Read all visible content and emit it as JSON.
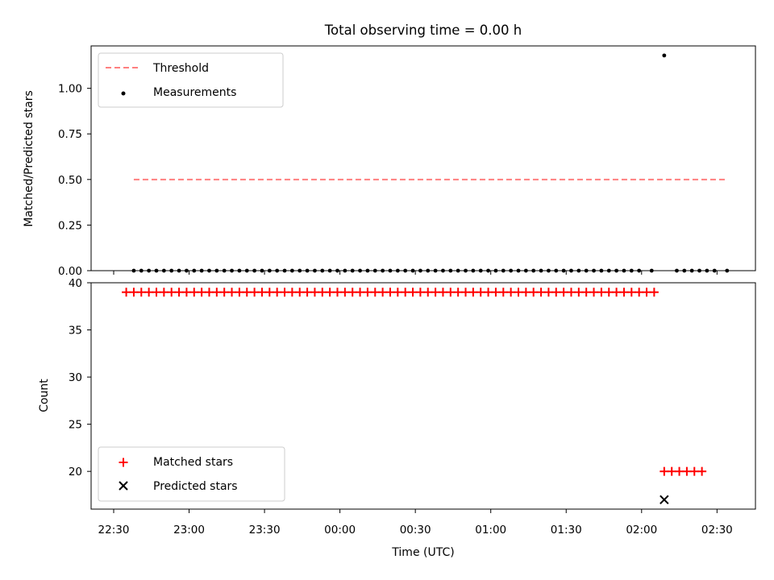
{
  "chart_data": [
    {
      "type": "scatter",
      "title": "Total observing time = 0.00 h",
      "ylabel": "Matched/Predicted stars",
      "ylim": [
        0,
        1.2325
      ],
      "yticks": [
        "0.00",
        "0.25",
        "0.50",
        "0.75",
        "1.00"
      ],
      "ytick_values": [
        0,
        0.25,
        0.5,
        0.75,
        1.0
      ],
      "grid": false,
      "legend_position": "top-left",
      "legend": [
        "Threshold",
        "Measurements"
      ],
      "threshold": {
        "name": "Threshold",
        "value": 0.5,
        "x_start": "22:38",
        "x_end": "02:34",
        "color": "#ff7f7f",
        "style": "dashed"
      },
      "measurements": {
        "name": "Measurements",
        "color": "#000000",
        "x": [
          "22:38",
          "22:41",
          "22:44",
          "22:47",
          "22:50",
          "22:53",
          "22:56",
          "22:59",
          "23:02",
          "23:05",
          "23:08",
          "23:11",
          "23:14",
          "23:17",
          "23:20",
          "23:23",
          "23:26",
          "23:29",
          "23:32",
          "23:35",
          "23:38",
          "23:41",
          "23:44",
          "23:47",
          "23:50",
          "23:53",
          "23:56",
          "23:59",
          "00:02",
          "00:05",
          "00:08",
          "00:11",
          "00:14",
          "00:17",
          "00:20",
          "00:23",
          "00:26",
          "00:29",
          "00:32",
          "00:35",
          "00:38",
          "00:41",
          "00:44",
          "00:47",
          "00:50",
          "00:53",
          "00:56",
          "00:59",
          "01:02",
          "01:05",
          "01:08",
          "01:11",
          "01:14",
          "01:17",
          "01:20",
          "01:23",
          "01:26",
          "01:29",
          "01:32",
          "01:35",
          "01:38",
          "01:41",
          "01:44",
          "01:47",
          "01:50",
          "01:53",
          "01:56",
          "01:59",
          "02:04",
          "02:09",
          "02:14",
          "02:17",
          "02:20",
          "02:23",
          "02:26",
          "02:29",
          "02:34"
        ],
        "y": [
          0,
          0,
          0,
          0,
          0,
          0,
          0,
          0,
          0,
          0,
          0,
          0,
          0,
          0,
          0,
          0,
          0,
          0,
          0,
          0,
          0,
          0,
          0,
          0,
          0,
          0,
          0,
          0,
          0,
          0,
          0,
          0,
          0,
          0,
          0,
          0,
          0,
          0,
          0,
          0,
          0,
          0,
          0,
          0,
          0,
          0,
          0,
          0,
          0,
          0,
          0,
          0,
          0,
          0,
          0,
          0,
          0,
          0,
          0,
          0,
          0,
          0,
          0,
          0,
          0,
          0,
          0,
          0,
          0,
          1.18,
          0,
          0,
          0,
          0,
          0,
          0,
          0
        ]
      }
    },
    {
      "type": "scatter",
      "xlabel": "Time (UTC)",
      "ylabel": "Count",
      "ylim": [
        16,
        40
      ],
      "yticks": [
        "20",
        "25",
        "30",
        "35",
        "40"
      ],
      "ytick_values": [
        20,
        25,
        30,
        35,
        40
      ],
      "xticks": [
        "22:30",
        "23:00",
        "23:30",
        "00:00",
        "00:30",
        "01:00",
        "01:30",
        "02:00",
        "02:30"
      ],
      "grid": false,
      "legend_position": "bottom-left",
      "legend": [
        "Matched stars",
        "Predicted stars"
      ],
      "series": [
        {
          "name": "Matched stars",
          "marker": "plus",
          "color": "#ff0000",
          "x": [
            "22:35",
            "22:38",
            "22:41",
            "22:44",
            "22:47",
            "22:50",
            "22:53",
            "22:56",
            "22:59",
            "23:02",
            "23:05",
            "23:08",
            "23:11",
            "23:14",
            "23:17",
            "23:20",
            "23:23",
            "23:26",
            "23:29",
            "23:32",
            "23:35",
            "23:38",
            "23:41",
            "23:44",
            "23:47",
            "23:50",
            "23:53",
            "23:56",
            "23:59",
            "00:02",
            "00:05",
            "00:08",
            "00:11",
            "00:14",
            "00:17",
            "00:20",
            "00:23",
            "00:26",
            "00:29",
            "00:32",
            "00:35",
            "00:38",
            "00:41",
            "00:44",
            "00:47",
            "00:50",
            "00:53",
            "00:56",
            "00:59",
            "01:02",
            "01:05",
            "01:08",
            "01:11",
            "01:14",
            "01:17",
            "01:20",
            "01:23",
            "01:26",
            "01:29",
            "01:32",
            "01:35",
            "01:38",
            "01:41",
            "01:44",
            "01:47",
            "01:50",
            "01:53",
            "01:56",
            "01:59",
            "02:02",
            "02:05",
            "02:09",
            "02:12",
            "02:15",
            "02:18",
            "02:21",
            "02:24"
          ],
          "y": [
            39,
            39,
            39,
            39,
            39,
            39,
            39,
            39,
            39,
            39,
            39,
            39,
            39,
            39,
            39,
            39,
            39,
            39,
            39,
            39,
            39,
            39,
            39,
            39,
            39,
            39,
            39,
            39,
            39,
            39,
            39,
            39,
            39,
            39,
            39,
            39,
            39,
            39,
            39,
            39,
            39,
            39,
            39,
            39,
            39,
            39,
            39,
            39,
            39,
            39,
            39,
            39,
            39,
            39,
            39,
            39,
            39,
            39,
            39,
            39,
            39,
            39,
            39,
            39,
            39,
            39,
            39,
            39,
            39,
            39,
            39,
            20,
            20,
            20,
            20,
            20,
            20
          ]
        },
        {
          "name": "Predicted stars",
          "marker": "x",
          "color": "#000000",
          "x": [
            "02:09"
          ],
          "y": [
            17
          ]
        }
      ]
    }
  ]
}
